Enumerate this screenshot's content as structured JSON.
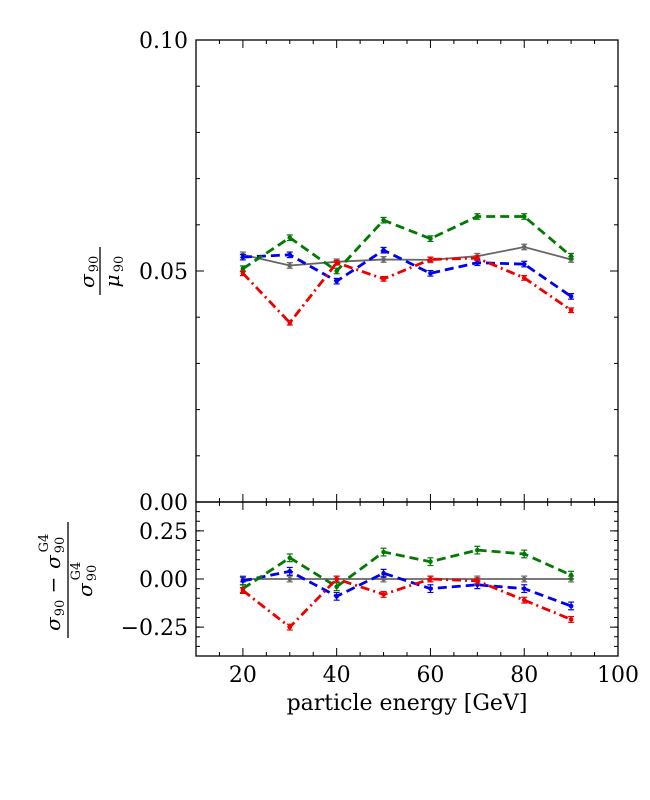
{
  "chart_data": [
    {
      "type": "line",
      "panel": "top",
      "ylabel": "σ90 / μ90",
      "ylabel_math": {
        "num": "σ",
        "num_sub": "90",
        "den": "μ",
        "den_sub": "90"
      },
      "xlim": [
        10,
        100
      ],
      "ylim": [
        0.0,
        0.1
      ],
      "yticks": [
        0.0,
        0.05,
        0.1
      ],
      "ytick_labels": [
        "0.00",
        "0.05",
        "0.10"
      ],
      "x": [
        20,
        30,
        40,
        50,
        60,
        70,
        80,
        90
      ],
      "series": [
        {
          "name": "grey-solid",
          "color": "#666666",
          "dash": "solid",
          "values": [
            0.0535,
            0.0512,
            0.052,
            0.0525,
            0.0524,
            0.0532,
            0.0552,
            0.0525
          ],
          "errors": [
            0.0006,
            0.0006,
            0.0006,
            0.0006,
            0.0006,
            0.0006,
            0.0006,
            0.0006
          ]
        },
        {
          "name": "blue-dashed",
          "color": "#0000ee",
          "dash": "dashed",
          "values": [
            0.053,
            0.0535,
            0.0478,
            0.0545,
            0.0495,
            0.0518,
            0.0515,
            0.0445
          ],
          "errors": [
            0.0006,
            0.0006,
            0.0006,
            0.0006,
            0.0006,
            0.0006,
            0.0006,
            0.0006
          ]
        },
        {
          "name": "green-dashed",
          "color": "#007a00",
          "dash": "dashed",
          "values": [
            0.0505,
            0.0572,
            0.05,
            0.061,
            0.057,
            0.0618,
            0.0618,
            0.0532
          ],
          "errors": [
            0.0006,
            0.0006,
            0.0006,
            0.0006,
            0.0006,
            0.0006,
            0.0006,
            0.0006
          ]
        },
        {
          "name": "red-dashdot",
          "color": "#ee0000",
          "dash": "dashdot",
          "values": [
            0.0495,
            0.0388,
            0.0518,
            0.0483,
            0.0525,
            0.0528,
            0.0485,
            0.0415
          ],
          "errors": [
            0.0005,
            0.0005,
            0.0005,
            0.0005,
            0.0005,
            0.0005,
            0.0005,
            0.0005
          ]
        }
      ]
    },
    {
      "type": "line",
      "panel": "bottom",
      "ylabel": "(σ90 − σ90^G4) / σ90^G4",
      "ylabel_math": {
        "num_a": "σ",
        "num_a_sub": "90",
        "minus": "−",
        "num_b": "σ",
        "num_b_sub": "90",
        "num_b_sup": "G4",
        "den": "σ",
        "den_sub": "90",
        "den_sup": "G4"
      },
      "xlabel": "particle energy [GeV]",
      "xlim": [
        10,
        100
      ],
      "ylim": [
        -0.4,
        0.4
      ],
      "xticks": [
        20,
        40,
        60,
        80,
        100
      ],
      "xtick_labels": [
        "20",
        "40",
        "60",
        "80",
        "100"
      ],
      "yticks": [
        0.25,
        0.0,
        -0.25
      ],
      "ytick_labels": [
        "0.25",
        "0.00",
        "−0.25"
      ],
      "x": [
        20,
        30,
        40,
        50,
        60,
        70,
        80,
        90
      ],
      "series": [
        {
          "name": "grey-solid",
          "color": "#666666",
          "dash": "solid",
          "values": [
            0.0,
            0.0,
            0.0,
            0.0,
            0.0,
            0.0,
            0.0,
            0.0
          ],
          "errors": [
            0.015,
            0.015,
            0.015,
            0.015,
            0.015,
            0.015,
            0.015,
            0.015
          ]
        },
        {
          "name": "blue-dashed",
          "color": "#0000ee",
          "dash": "dashed",
          "values": [
            -0.01,
            0.04,
            -0.09,
            0.03,
            -0.05,
            -0.03,
            -0.05,
            -0.14
          ],
          "errors": [
            0.02,
            0.02,
            0.02,
            0.02,
            0.02,
            0.02,
            0.02,
            0.02
          ]
        },
        {
          "name": "green-dashed",
          "color": "#007a00",
          "dash": "dashed",
          "values": [
            -0.05,
            0.11,
            -0.04,
            0.14,
            0.09,
            0.15,
            0.13,
            0.02
          ],
          "errors": [
            0.02,
            0.02,
            0.02,
            0.02,
            0.02,
            0.02,
            0.02,
            0.02
          ]
        },
        {
          "name": "red-dashdot",
          "color": "#ee0000",
          "dash": "dashdot",
          "values": [
            -0.06,
            -0.25,
            0.0,
            -0.08,
            0.0,
            -0.01,
            -0.11,
            -0.21
          ],
          "errors": [
            0.015,
            0.015,
            0.015,
            0.015,
            0.015,
            0.015,
            0.015,
            0.015
          ]
        }
      ]
    }
  ]
}
